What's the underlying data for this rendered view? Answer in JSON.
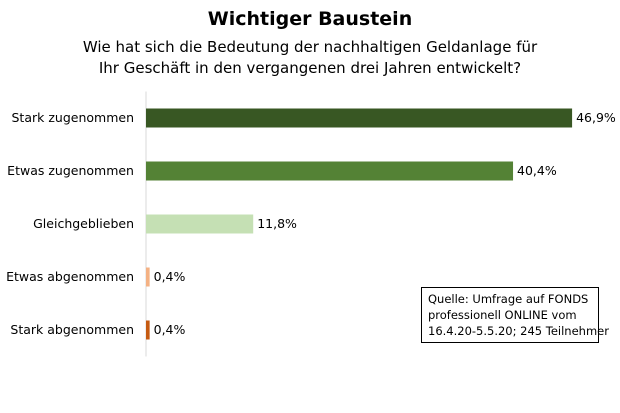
{
  "chart_data": {
    "type": "bar",
    "orientation": "horizontal",
    "title": "Wichtiger Baustein",
    "subtitle": [
      "Wie hat sich die Bedeutung  der nachhaltigen  Geldanlage  für",
      "Ihr Geschäft in den vergangenen drei Jahren entwickelt?"
    ],
    "categories": [
      "Stark zugenommen",
      "Etwas zugenommen",
      "Gleichgeblieben",
      "Etwas abgenommen",
      "Stark abgenommen"
    ],
    "values": [
      46.9,
      40.4,
      11.8,
      0.4,
      0.4
    ],
    "value_labels": [
      "46,9%",
      "40,4%",
      "11,8%",
      "0,4%",
      "0,4%"
    ],
    "colors": [
      "#385723",
      "#548235",
      "#c5e0b4",
      "#f4b183",
      "#c55a11"
    ],
    "xlim": [
      0,
      47
    ],
    "grid": false,
    "legend": "none"
  },
  "source": [
    "Quelle: Umfrage auf FONDS",
    "professionell ONLINE vom",
    "16.4.20-5.5.20;  245  Teilnehmer"
  ]
}
